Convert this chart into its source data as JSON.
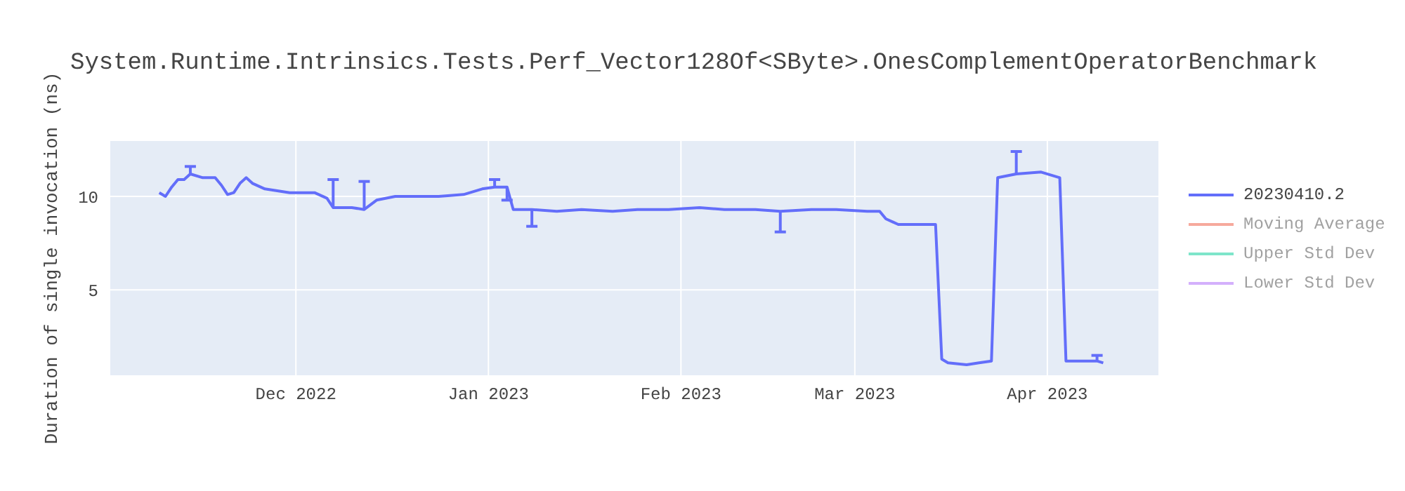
{
  "chart_data": {
    "type": "line",
    "title": "System.Runtime.Intrinsics.Tests.Perf_Vector128Of<SByte>.OnesComplementOperatorBenchmark",
    "ylabel": "Duration of single invocation (ns)",
    "x": [
      "2022-11-09",
      "2022-11-10",
      "2022-11-11",
      "2022-11-12",
      "2022-11-13",
      "2022-11-14",
      "2022-11-16",
      "2022-11-18",
      "2022-11-19",
      "2022-11-20",
      "2022-11-21",
      "2022-11-22",
      "2022-11-23",
      "2022-11-24",
      "2022-11-26",
      "2022-11-28",
      "2022-11-30",
      "2022-12-02",
      "2022-12-04",
      "2022-12-06",
      "2022-12-07",
      "2022-12-10",
      "2022-12-12",
      "2022-12-14",
      "2022-12-17",
      "2022-12-19",
      "2022-12-21",
      "2022-12-24",
      "2022-12-28",
      "2022-12-31",
      "2023-01-02",
      "2023-01-04",
      "2023-01-05",
      "2023-01-08",
      "2023-01-12",
      "2023-01-16",
      "2023-01-21",
      "2023-01-25",
      "2023-01-30",
      "2023-02-04",
      "2023-02-08",
      "2023-02-13",
      "2023-02-17",
      "2023-02-22",
      "2023-02-26",
      "2023-03-03",
      "2023-03-05",
      "2023-03-06",
      "2023-03-08",
      "2023-03-12",
      "2023-03-14",
      "2023-03-15",
      "2023-03-16",
      "2023-03-19",
      "2023-03-21",
      "2023-03-23",
      "2023-03-24",
      "2023-03-27",
      "2023-03-31",
      "2023-04-03",
      "2023-04-04",
      "2023-04-06",
      "2023-04-09",
      "2023-04-10"
    ],
    "series": [
      {
        "name": "20230410.2",
        "color": "#636efa",
        "values": [
          10.2,
          10.0,
          10.5,
          10.9,
          10.9,
          11.2,
          11.0,
          11.0,
          10.6,
          10.1,
          10.2,
          10.7,
          11.0,
          10.7,
          10.4,
          10.3,
          10.2,
          10.2,
          10.2,
          9.9,
          9.4,
          9.4,
          9.3,
          9.8,
          10.0,
          10.0,
          10.0,
          10.0,
          10.1,
          10.4,
          10.5,
          10.5,
          9.3,
          9.3,
          9.2,
          9.3,
          9.2,
          9.3,
          9.3,
          9.4,
          9.3,
          9.3,
          9.2,
          9.3,
          9.3,
          9.2,
          9.2,
          8.8,
          8.5,
          8.5,
          8.5,
          1.3,
          1.1,
          1.0,
          1.1,
          1.2,
          11.0,
          11.2,
          11.3,
          11.0,
          1.2,
          1.2,
          1.2,
          1.1
        ],
        "errors": [
          null,
          null,
          null,
          null,
          null,
          [
            11.2,
            11.6
          ],
          null,
          null,
          null,
          null,
          null,
          null,
          null,
          null,
          null,
          null,
          null,
          null,
          null,
          null,
          [
            9.4,
            10.9
          ],
          null,
          [
            9.3,
            10.8
          ],
          null,
          null,
          null,
          null,
          null,
          null,
          null,
          [
            10.5,
            10.9
          ],
          [
            9.8,
            10.5
          ],
          null,
          [
            8.4,
            9.3
          ],
          null,
          null,
          null,
          null,
          null,
          null,
          null,
          null,
          [
            8.1,
            9.2
          ],
          null,
          null,
          null,
          null,
          null,
          null,
          null,
          null,
          null,
          null,
          null,
          null,
          null,
          null,
          [
            11.2,
            12.4
          ],
          null,
          null,
          null,
          null,
          [
            1.2,
            1.5
          ],
          null
        ]
      },
      {
        "name": "Moving Average",
        "color": "#ef553b",
        "values": [
          null,
          null,
          null,
          null,
          null,
          null,
          null,
          null,
          null,
          null,
          null,
          null,
          null,
          null,
          null,
          null,
          null,
          null,
          null,
          null,
          null,
          null,
          null,
          null,
          null,
          null,
          null,
          null,
          null,
          null,
          null,
          null,
          null,
          null,
          null,
          null,
          null,
          null,
          null,
          null,
          null,
          null,
          null,
          null,
          null,
          null,
          null,
          null,
          null,
          null,
          null,
          null,
          null,
          null,
          null,
          null,
          null,
          null,
          null,
          null,
          null,
          null,
          null,
          null
        ]
      },
      {
        "name": "Upper Std Dev",
        "color": "#00cc96",
        "values": [
          null,
          null,
          null,
          null,
          null,
          null,
          null,
          null,
          null,
          null,
          null,
          null,
          null,
          null,
          null,
          null,
          null,
          null,
          null,
          null,
          null,
          null,
          null,
          null,
          null,
          null,
          null,
          null,
          null,
          null,
          null,
          null,
          null,
          null,
          null,
          null,
          null,
          null,
          null,
          null,
          null,
          null,
          null,
          null,
          null,
          null,
          null,
          null,
          null,
          null,
          null,
          null,
          null,
          null,
          null,
          null,
          null,
          null,
          null,
          null,
          null,
          null,
          null,
          null
        ]
      },
      {
        "name": "Lower Std Dev",
        "color": "#ab63fa",
        "values": [
          null,
          null,
          null,
          null,
          null,
          null,
          null,
          null,
          null,
          null,
          null,
          null,
          null,
          null,
          null,
          null,
          null,
          null,
          null,
          null,
          null,
          null,
          null,
          null,
          null,
          null,
          null,
          null,
          null,
          null,
          null,
          null,
          null,
          null,
          null,
          null,
          null,
          null,
          null,
          null,
          null,
          null,
          null,
          null,
          null,
          null,
          null,
          null,
          null,
          null,
          null,
          null,
          null,
          null,
          null,
          null,
          null,
          null,
          null,
          null,
          null,
          null,
          null,
          null
        ]
      }
    ],
    "xlim": [
      "2022-11-01",
      "2023-04-19"
    ],
    "xticks": [
      {
        "value": "2022-12-01",
        "label": "Dec 2022"
      },
      {
        "value": "2023-01-01",
        "label": "Jan 2023"
      },
      {
        "value": "2023-02-01",
        "label": "Feb 2023"
      },
      {
        "value": "2023-03-01",
        "label": "Mar 2023"
      },
      {
        "value": "2023-04-01",
        "label": "Apr 2023"
      }
    ],
    "ylim": [
      0.4,
      13
    ],
    "yticks": [
      5,
      10
    ],
    "grid": true,
    "legend": "right",
    "marker": "none",
    "line_style": "solid"
  }
}
